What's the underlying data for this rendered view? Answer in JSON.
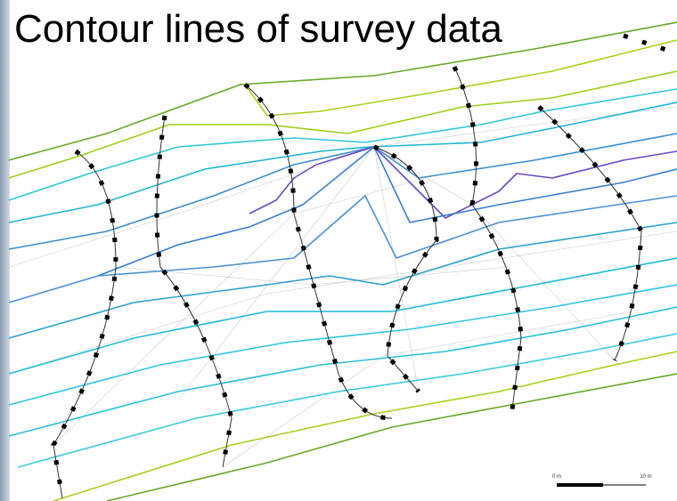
{
  "title": "Contour lines of survey data",
  "scale_bar": {
    "start_label": "0 m",
    "end_label": "10 m"
  }
}
